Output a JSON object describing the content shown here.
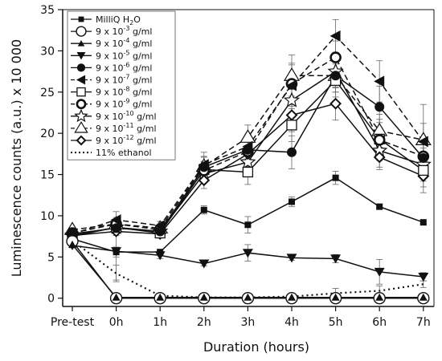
{
  "chart_data": {
    "type": "line",
    "xlabel": "Duration (hours)",
    "ylabel": "Luminescence counts (a.u.) x 10 000",
    "categories": [
      "Pre-test",
      "0h",
      "1h",
      "2h",
      "3h",
      "4h",
      "5h",
      "6h",
      "7h"
    ],
    "ylim": [
      -1,
      35
    ],
    "yticks": [
      0,
      5,
      10,
      15,
      20,
      25,
      30,
      35
    ],
    "grid": false,
    "legend_position": "top-left",
    "series": [
      {
        "name": "MilliQ H2O",
        "legend": {
          "base": "MilliQ H",
          "sub": "2",
          "tail": "O"
        },
        "marker": "square-filled",
        "dash": "solid",
        "values": [
          7.2,
          5.6,
          5.6,
          10.7,
          8.9,
          11.7,
          14.6,
          11.1,
          9.2
        ],
        "err": [
          0,
          0.6,
          0.3,
          0.5,
          1.0,
          0.6,
          0.8,
          0.3,
          0.3
        ]
      },
      {
        "name": "9 x 10-3 g/ml",
        "legend": {
          "base": "9 x 10",
          "sup": "-3",
          "tail": " g/ml"
        },
        "marker": "circle-open",
        "dash": "solid",
        "values": [
          6.9,
          0,
          0,
          0,
          0,
          0,
          0,
          0,
          0
        ],
        "err": [
          0.3,
          0,
          0,
          0,
          0,
          0,
          0,
          0,
          0
        ]
      },
      {
        "name": "9 x 10-4 g/ml",
        "legend": {
          "base": "9 x 10",
          "sup": "-4",
          "tail": " g/ml"
        },
        "marker": "triangle-up-filled",
        "dash": "solid",
        "values": [
          6.5,
          0.1,
          0.1,
          0.1,
          0.1,
          0.1,
          0.1,
          0.1,
          0.1
        ],
        "err": [
          0.3,
          0,
          0,
          0,
          0,
          0,
          0,
          0,
          0
        ]
      },
      {
        "name": "9 x 10-5 g/ml",
        "legend": {
          "base": "9 x 10",
          "sup": "-5",
          "tail": " g/ml"
        },
        "marker": "triangle-down-filled",
        "dash": "solid",
        "values": [
          6.4,
          5.7,
          5.2,
          4.2,
          5.5,
          4.9,
          4.8,
          3.2,
          2.6
        ],
        "err": [
          0.3,
          3.5,
          0.4,
          0.3,
          1.0,
          0.3,
          0.5,
          1.5,
          0.5
        ]
      },
      {
        "name": "9 x 10-6 g/ml",
        "legend": {
          "base": "9 x 10",
          "sup": "-6",
          "tail": " g/ml"
        },
        "marker": "circle-filled",
        "dash": "solid",
        "values": [
          7.8,
          8.5,
          8.1,
          15.9,
          18.0,
          17.7,
          27.0,
          23.2,
          17.0
        ],
        "err": [
          0.4,
          0.6,
          0.4,
          1.2,
          1.5,
          2.0,
          2.0,
          2.5,
          2.5
        ]
      },
      {
        "name": "9 x 10-7 g/ml",
        "legend": {
          "base": "9 x 10",
          "sup": "-7",
          "tail": " g/ml"
        },
        "marker": "triangle-left-filled",
        "dash": "dashed",
        "values": [
          7.8,
          9.5,
          8.8,
          16.2,
          18.4,
          25.8,
          31.8,
          26.3,
          19.0
        ],
        "err": [
          0.3,
          1.0,
          0.5,
          1.5,
          1.5,
          2.5,
          2.0,
          2.5,
          4.5
        ]
      },
      {
        "name": "9 x 10-8 g/ml",
        "legend": {
          "base": "9 x 10",
          "sup": "-8",
          "tail": " g/ml"
        },
        "marker": "square-open",
        "dash": "solid",
        "values": [
          7.5,
          8.6,
          7.9,
          15.6,
          15.3,
          21.0,
          26.4,
          19.3,
          15.5
        ],
        "err": [
          0.3,
          0.5,
          0.4,
          1.0,
          1.5,
          2.0,
          2.0,
          2.0,
          2.0
        ]
      },
      {
        "name": "9 x 10-9 g/ml",
        "legend": {
          "base": "9 x 10",
          "sup": "-9",
          "tail": " g/ml"
        },
        "marker": "circle-open-thick",
        "dash": "dashed",
        "values": [
          7.9,
          9.0,
          8.3,
          15.5,
          17.8,
          26.0,
          29.2,
          19.2,
          17.2
        ],
        "err": [
          0.3,
          0.8,
          0.5,
          1.0,
          1.5,
          2.5,
          2.0,
          2.5,
          2.0
        ]
      },
      {
        "name": "9 x 10-10 g/ml",
        "legend": {
          "base": "9 x 10",
          "sup": "-10",
          "tail": " g/ml"
        },
        "marker": "star-open",
        "dash": "solid",
        "values": [
          7.6,
          8.6,
          8.1,
          15.1,
          16.5,
          24.0,
          27.5,
          17.9,
          16.2
        ],
        "err": [
          0.3,
          0.5,
          0.4,
          1.0,
          1.5,
          2.0,
          2.0,
          2.0,
          2.0
        ]
      },
      {
        "name": "9 x 10-11 g/ml",
        "legend": {
          "base": "9 x 10",
          "sup": "-11",
          "tail": " g/ml"
        },
        "marker": "triangle-up-open",
        "dash": "dashed",
        "values": [
          8.3,
          9.0,
          8.5,
          16.0,
          19.5,
          27.0,
          27.0,
          20.3,
          19.2
        ],
        "err": [
          0.3,
          0.6,
          0.5,
          1.2,
          1.5,
          2.5,
          2.0,
          2.0,
          2.0
        ]
      },
      {
        "name": "9 x 10-12 g/ml",
        "legend": {
          "base": "9 x 10",
          "sup": "-12",
          "tail": " g/ml"
        },
        "marker": "diamond-open",
        "dash": "solid",
        "values": [
          7.6,
          8.1,
          7.8,
          14.3,
          17.5,
          22.2,
          23.6,
          17.1,
          14.8
        ],
        "err": [
          0.3,
          0.5,
          0.4,
          1.0,
          1.5,
          2.0,
          2.0,
          1.5,
          2.0
        ]
      },
      {
        "name": "11% ethanol",
        "legend": {
          "base": "11% ethanol"
        },
        "marker": "none",
        "dash": "dotted",
        "values": [
          7.0,
          3.0,
          0.3,
          0.1,
          0.1,
          0.2,
          0.6,
          0.9,
          1.7
        ],
        "err": [
          0.3,
          1.0,
          0.2,
          0,
          0,
          0,
          0.6,
          0.6,
          0.4
        ]
      }
    ]
  }
}
